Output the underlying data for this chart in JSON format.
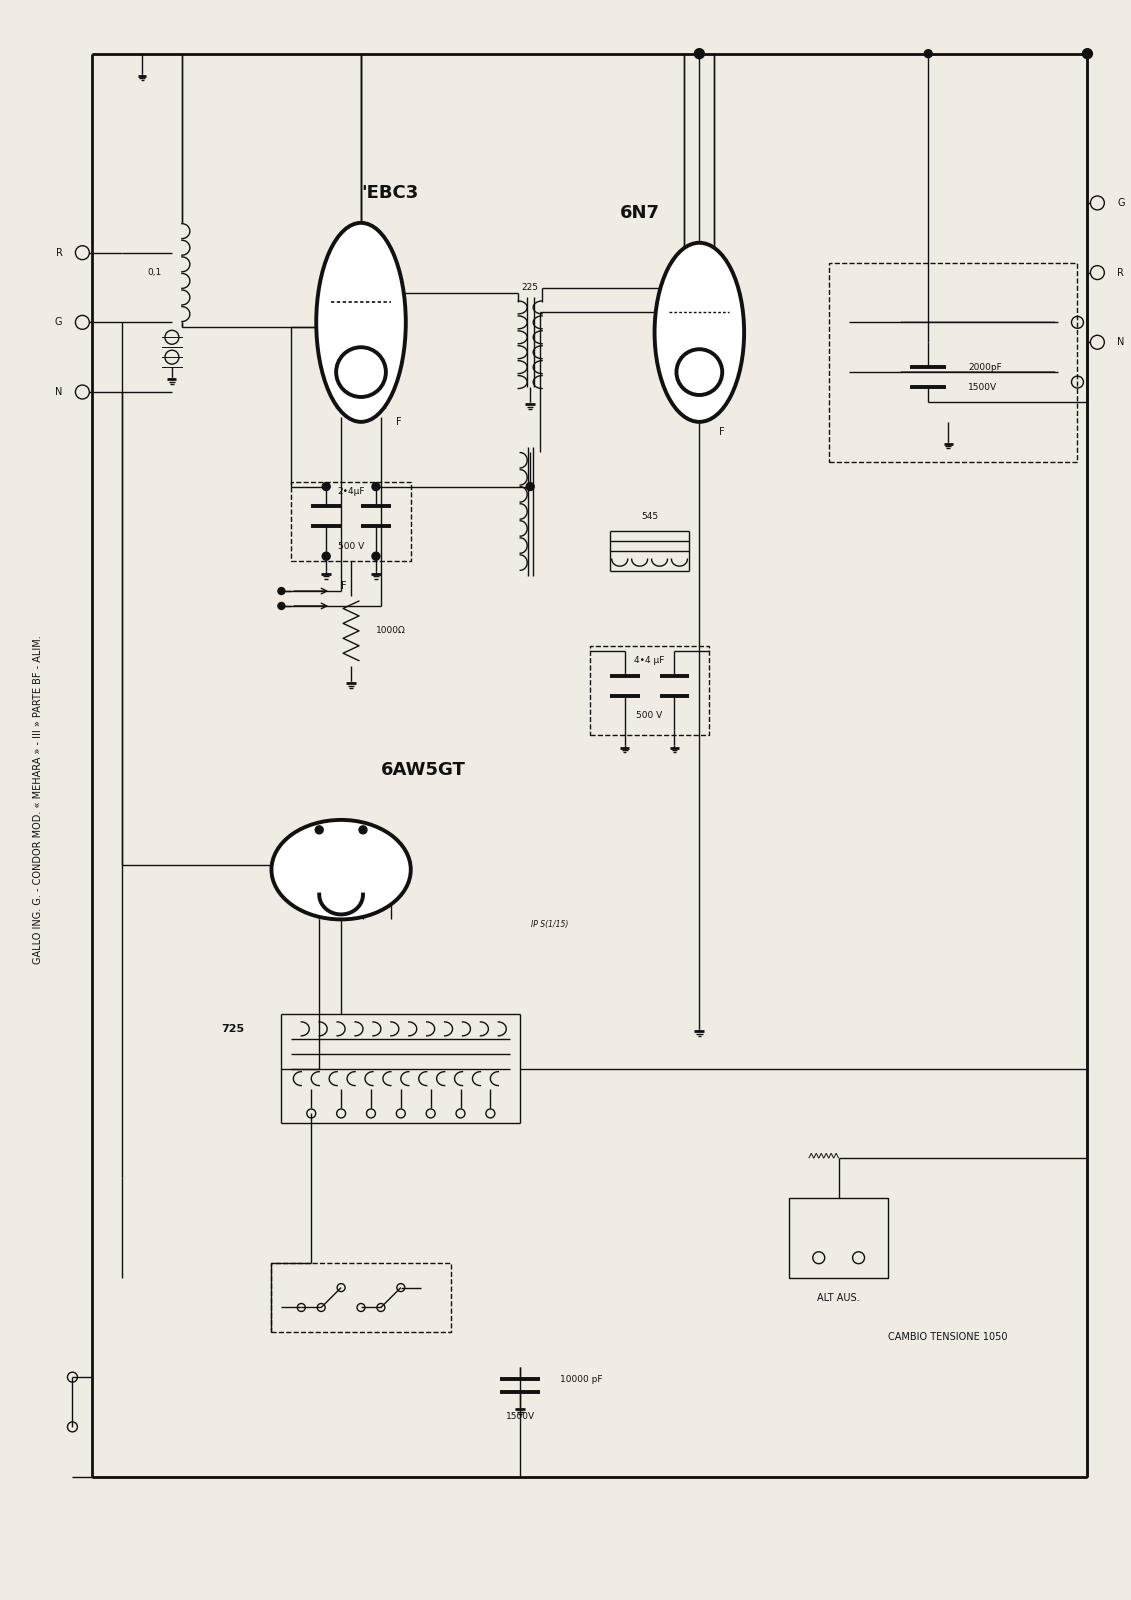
{
  "title": "GALLO ING. G. - CONDOR MOD. « MEHARA » - III » PARTE BF - ALIM.",
  "background_color": "#f0ece4",
  "line_color": "#111111",
  "label_EBC3": "'EBC3",
  "label_6N7": "6N7",
  "label_6AW5GT": "6AW5GT",
  "label_225": "225",
  "label_545": "545",
  "label_725": "725",
  "label_cap1": "2•4μF",
  "label_cap1v": "500 V",
  "label_cap2": "4•4 μF",
  "label_cap2v": "500 V",
  "label_cap3": "2000pF",
  "label_cap3v": "1500V",
  "label_cap4": "10000 pF",
  "label_cap4v": "1500V",
  "label_res1": "1000Ω",
  "label_R": "R",
  "label_G": "G",
  "label_N": "N",
  "label_F": "F",
  "label_altaus": "ALT AUS.",
  "label_cambio": "CAMBIO TENSIONE 1050",
  "label_ipsis": "IP S(1/15)",
  "label_01": "0,1",
  "fig_width": 11.31,
  "fig_height": 16.0,
  "dpi": 100
}
